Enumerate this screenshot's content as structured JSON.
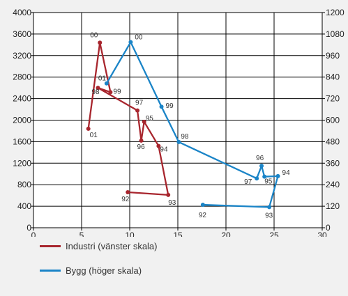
{
  "chart_data": {
    "type": "line",
    "x_ticks": [
      "0",
      "5",
      "10",
      "15",
      "20",
      "25",
      "30"
    ],
    "y_left_ticks": [
      "0",
      "400",
      "800",
      "1200",
      "1600",
      "2000",
      "2400",
      "2800",
      "3200",
      "3600",
      "4000"
    ],
    "y_right_ticks": [
      "0",
      "120",
      "240",
      "360",
      "480",
      "600",
      "720",
      "840",
      "960",
      "1080",
      "1200"
    ],
    "xlim": [
      0,
      30
    ],
    "ylim_left": [
      0,
      4000
    ],
    "ylim_right": [
      0,
      1200
    ],
    "grid": true,
    "legend_position": "bottom-left",
    "series": [
      {
        "name": "Industri (vänster skala)",
        "axis": "left",
        "color": "#a8262e",
        "points": [
          {
            "label": "92",
            "x": 9.8,
            "y": 660
          },
          {
            "label": "93",
            "x": 14.0,
            "y": 610
          },
          {
            "label": "94",
            "x": 13.0,
            "y": 1520
          },
          {
            "label": "95",
            "x": 11.5,
            "y": 1970
          },
          {
            "label": "96",
            "x": 11.2,
            "y": 1620
          },
          {
            "label": "97",
            "x": 10.8,
            "y": 2180
          },
          {
            "label": "98",
            "x": 6.7,
            "y": 2600
          },
          {
            "label": "99",
            "x": 8.0,
            "y": 2520
          },
          {
            "label": "00",
            "x": 6.9,
            "y": 3440
          },
          {
            "label": "01",
            "x": 5.7,
            "y": 1840
          }
        ]
      },
      {
        "name": "Bygg (höger skala)",
        "axis": "right",
        "color": "#1a84c7",
        "points": [
          {
            "label": "92",
            "x": 17.6,
            "y": 128
          },
          {
            "label": "93",
            "x": 24.5,
            "y": 115
          },
          {
            "label": "94",
            "x": 25.4,
            "y": 288
          },
          {
            "label": "95",
            "x": 24.0,
            "y": 285
          },
          {
            "label": "96",
            "x": 23.7,
            "y": 345
          },
          {
            "label": "97",
            "x": 23.2,
            "y": 275
          },
          {
            "label": "98",
            "x": 15.1,
            "y": 478
          },
          {
            "label": "99",
            "x": 13.3,
            "y": 675
          },
          {
            "label": "00",
            "x": 10.1,
            "y": 1035
          },
          {
            "label": "01",
            "x": 7.6,
            "y": 805
          }
        ]
      }
    ]
  }
}
